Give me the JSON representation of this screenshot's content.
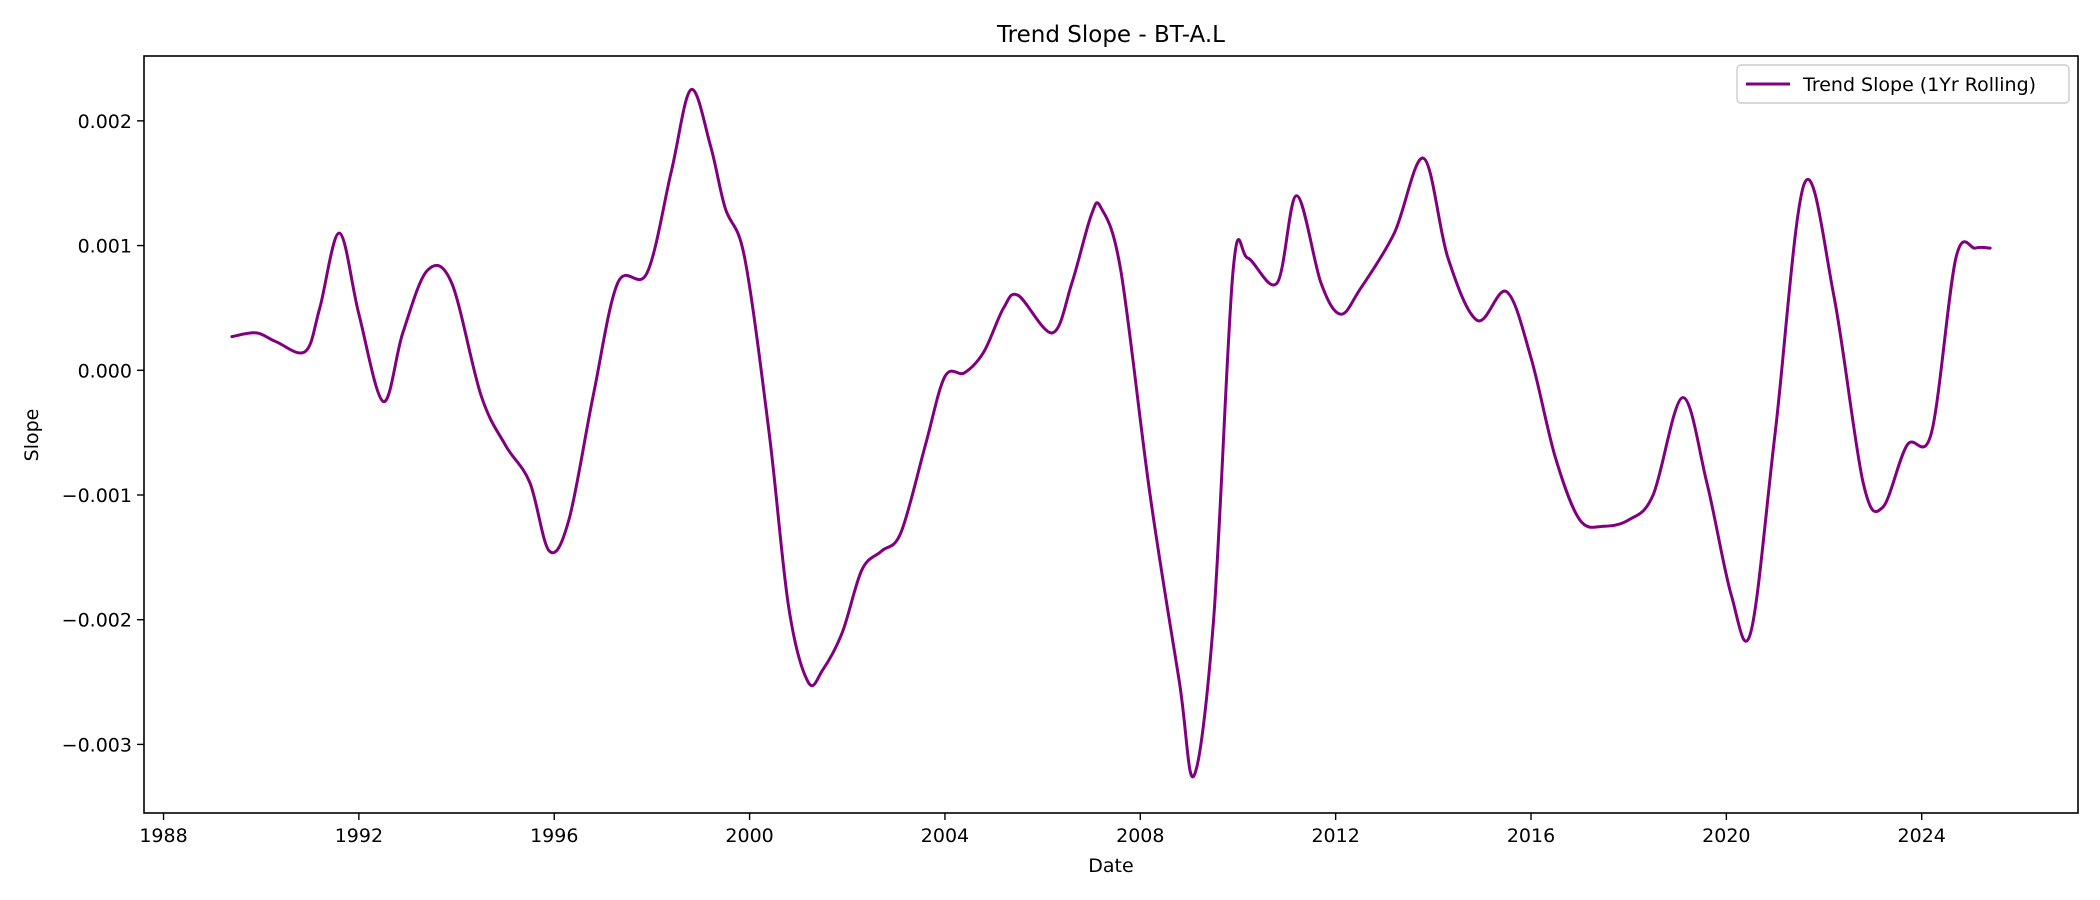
{
  "chart_data": {
    "type": "line",
    "title": "Trend Slope - BT-A.L",
    "xlabel": "Date",
    "ylabel": "Slope",
    "x_ticks": [
      "1988",
      "1992",
      "1996",
      "2000",
      "2004",
      "2008",
      "2012",
      "2016",
      "2020",
      "2024"
    ],
    "y_ticks": [
      "−0.003",
      "−0.002",
      "−0.001",
      "0.000",
      "0.001",
      "0.002"
    ],
    "xlim": [
      1987.6,
      2027.2
    ],
    "ylim": [
      -0.00355,
      0.00252
    ],
    "grid": false,
    "legend_position": "top-right",
    "colors": {
      "line": "#800080"
    },
    "series": [
      {
        "name": "Trend Slope (1Yr Rolling)",
        "x": [
          1989.4,
          1989.9,
          1990.3,
          1990.9,
          1991.2,
          1991.6,
          1992.0,
          1992.5,
          1992.9,
          1993.4,
          1993.9,
          1994.5,
          1995.0,
          1995.5,
          1995.9,
          1996.3,
          1996.8,
          1997.3,
          1997.9,
          1998.4,
          1998.8,
          1999.2,
          1999.5,
          1999.9,
          2000.4,
          2000.8,
          2001.2,
          2001.5,
          2001.9,
          2002.3,
          2002.7,
          2003.1,
          2003.6,
          2004.0,
          2004.4,
          2004.8,
          2005.2,
          2005.5,
          2006.2,
          2006.6,
          2007.0,
          2007.2,
          2007.6,
          2008.2,
          2008.8,
          2009.1,
          2009.5,
          2009.9,
          2010.2,
          2010.8,
          2011.2,
          2011.7,
          2012.1,
          2012.5,
          2013.2,
          2013.8,
          2014.3,
          2014.9,
          2015.5,
          2016.0,
          2016.5,
          2017.0,
          2017.5,
          2018.0,
          2018.5,
          2019.1,
          2019.6,
          2020.1,
          2020.5,
          2021.0,
          2021.6,
          2022.2,
          2022.8,
          2023.2,
          2023.7,
          2024.2,
          2024.7,
          2025.1,
          2025.4
        ],
        "values": [
          0.00027,
          0.0003,
          0.00023,
          0.00015,
          0.0005,
          0.0011,
          0.00045,
          -0.00025,
          0.0003,
          0.0008,
          0.0007,
          -0.0002,
          -0.0006,
          -0.0009,
          -0.00145,
          -0.0012,
          -0.0002,
          0.0007,
          0.00078,
          0.0016,
          0.00225,
          0.0018,
          0.0013,
          0.0009,
          -0.0005,
          -0.0019,
          -0.0025,
          -0.0024,
          -0.0021,
          -0.0016,
          -0.00145,
          -0.0013,
          -0.0006,
          -5e-05,
          -2e-05,
          0.00015,
          0.0005,
          0.0006,
          0.0003,
          0.0007,
          0.00125,
          0.0013,
          0.0008,
          -0.001,
          -0.0025,
          -0.00325,
          -0.002,
          0.0008,
          0.0009,
          0.0007,
          0.0014,
          0.0007,
          0.00045,
          0.00065,
          0.0011,
          0.0017,
          0.0009,
          0.0004,
          0.00063,
          0.0001,
          -0.0007,
          -0.0012,
          -0.00125,
          -0.0012,
          -0.001,
          -0.00022,
          -0.0009,
          -0.0018,
          -0.0021,
          -0.0005,
          0.0015,
          0.0006,
          -0.0009,
          -0.0011,
          -0.0006,
          -0.0005,
          0.0009,
          0.00098,
          0.00098
        ]
      }
    ]
  }
}
